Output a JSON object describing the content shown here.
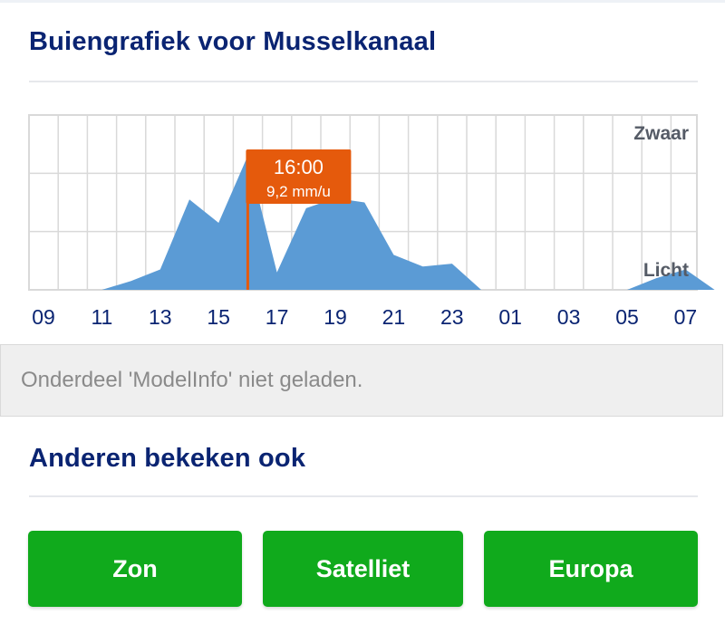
{
  "rain_graph": {
    "title": "Buiengrafiek voor Musselkanaal",
    "label_heavy": "Zwaar",
    "label_light": "Licht",
    "tooltip": {
      "time": "16:00",
      "value": "9,2 mm/u"
    },
    "x_labels": [
      "09",
      "11",
      "13",
      "15",
      "17",
      "19",
      "21",
      "23",
      "01",
      "03",
      "05",
      "07"
    ],
    "colors": {
      "area": "#5b9bd5",
      "marker": "#e55a0c",
      "grid": "#d9d9d9"
    }
  },
  "chart_data": {
    "type": "area",
    "x": [
      "09:00",
      "10:00",
      "11:00",
      "12:00",
      "13:00",
      "14:00",
      "15:00",
      "16:00",
      "17:00",
      "18:00",
      "19:00",
      "20:00",
      "21:00",
      "22:00",
      "23:00",
      "00:00",
      "01:00",
      "02:00",
      "03:00",
      "04:00",
      "05:00",
      "06:00",
      "07:00",
      "08:00"
    ],
    "values": [
      0,
      0,
      0,
      0.6,
      1.4,
      6.2,
      4.6,
      9.2,
      1.2,
      5.6,
      6.3,
      6.0,
      2.4,
      1.6,
      1.8,
      0,
      0,
      0,
      0,
      0,
      0,
      0.8,
      1.4,
      0
    ],
    "ylim": [
      0,
      12
    ],
    "grid": true,
    "highlight": {
      "x": "16:00",
      "value": 9.2
    }
  },
  "modelinfo": {
    "message": "Onderdeel 'ModelInfo' niet geladen."
  },
  "related": {
    "title": "Anderen bekeken ook",
    "buttons": [
      {
        "label": "Zon"
      },
      {
        "label": "Satelliet"
      },
      {
        "label": "Europa"
      }
    ],
    "button_color": "#10aa1c"
  }
}
